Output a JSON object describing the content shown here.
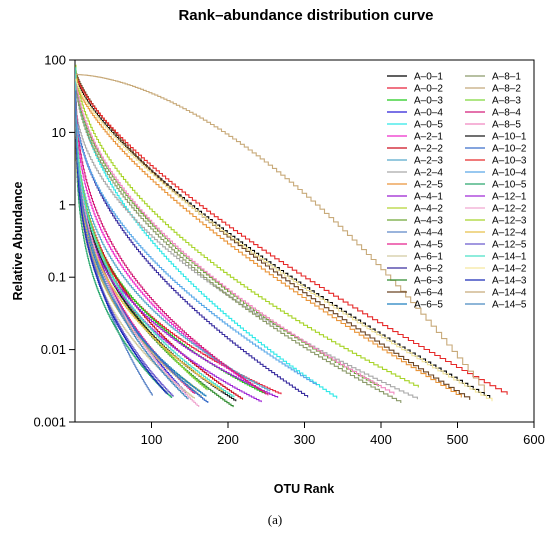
{
  "chart_data": {
    "type": "line",
    "title": "Rank–abundance distribution curve",
    "xlabel": "OTU Rank",
    "ylabel": "Relative Abundance",
    "y_scale": "log",
    "xlim": [
      0,
      600
    ],
    "ylim": [
      0.001,
      100
    ],
    "x_ticks": [
      "100",
      "200",
      "300",
      "400",
      "500",
      "600"
    ],
    "y_ticks": [
      "0.001",
      "0.01",
      "0.1",
      "1",
      "10",
      "100"
    ],
    "legend_position": "top-right",
    "grid": false,
    "series": [
      {
        "name": "A–0–1",
        "color": "#000000"
      },
      {
        "name": "A–0–2",
        "color": "#e8213b"
      },
      {
        "name": "A–0–3",
        "color": "#22c91b"
      },
      {
        "name": "A–0–4",
        "color": "#2a1fd6"
      },
      {
        "name": "A–0–5",
        "color": "#2ee8e8"
      },
      {
        "name": "A–2–1",
        "color": "#ee2cc9"
      },
      {
        "name": "A–2–2",
        "color": "#cc0e1d"
      },
      {
        "name": "A–2–3",
        "color": "#58a9c9"
      },
      {
        "name": "A–2–4",
        "color": "#a9a9a9"
      },
      {
        "name": "A–2–5",
        "color": "#e9953a"
      },
      {
        "name": "A–4–1",
        "color": "#9b1fd0"
      },
      {
        "name": "A–4–2",
        "color": "#b3d435"
      },
      {
        "name": "A–4–3",
        "color": "#6fa638"
      },
      {
        "name": "A–4–4",
        "color": "#5d86c7"
      },
      {
        "name": "A–4–5",
        "color": "#e5218e"
      },
      {
        "name": "A–6–1",
        "color": "#d2c9a0"
      },
      {
        "name": "A–6–2",
        "color": "#3a2ea0"
      },
      {
        "name": "A–6–3",
        "color": "#2e8b2e"
      },
      {
        "name": "A–6–4",
        "color": "#6b4423"
      },
      {
        "name": "A–6–5",
        "color": "#1f7fbf"
      },
      {
        "name": "A–8–1",
        "color": "#8c9a6a"
      },
      {
        "name": "A–8–2",
        "color": "#c4a97a"
      },
      {
        "name": "A–8–3",
        "color": "#7fd63a"
      },
      {
        "name": "A–8–4",
        "color": "#d41f7a"
      },
      {
        "name": "A–8–5",
        "color": "#f088c0"
      },
      {
        "name": "A–10–1",
        "color": "#1a1a1a"
      },
      {
        "name": "A–10–2",
        "color": "#3a6ec9"
      },
      {
        "name": "A–10–3",
        "color": "#e62a2a"
      },
      {
        "name": "A–10–4",
        "color": "#5aa8e8"
      },
      {
        "name": "A–10–5",
        "color": "#2aa86e"
      },
      {
        "name": "A–12–1",
        "color": "#a02ad6"
      },
      {
        "name": "A–12–2",
        "color": "#f0a8d0"
      },
      {
        "name": "A–12–3",
        "color": "#a8d42a"
      },
      {
        "name": "A–12–4",
        "color": "#e8c04a"
      },
      {
        "name": "A–12–5",
        "color": "#6a5acd"
      },
      {
        "name": "A–14–1",
        "color": "#4ae0c8"
      },
      {
        "name": "A–14–2",
        "color": "#f5e79e"
      },
      {
        "name": "A–14–3",
        "color": "#1a2ab8"
      },
      {
        "name": "A–14–4",
        "color": "#c8aa7a"
      },
      {
        "name": "A–14–5",
        "color": "#4a8ac0"
      }
    ]
  },
  "caption": "(a)"
}
